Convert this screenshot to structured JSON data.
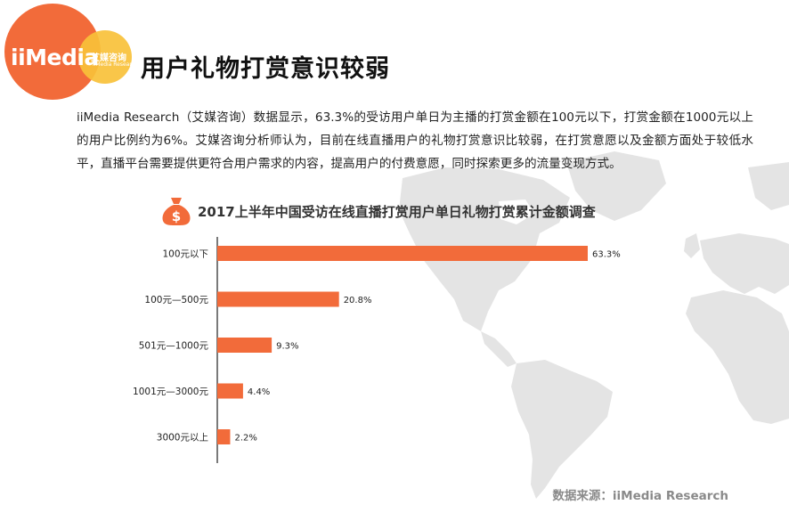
{
  "header": {
    "logo_text": "iiMedia",
    "logo_cn": "艾媒咨询",
    "logo_cn_sub": "iiMedia Research",
    "title": "用户礼物打赏意识较弱"
  },
  "description": "iiMedia Research（艾媒咨询）数据显示，63.3%的受访用户单日为主播的打赏金额在100元以下，打赏金额在1000元以上的用户比例约为6%。艾媒咨询分析师认为，目前在线直播用户的礼物打赏意识比较弱，在打赏意愿以及金额方面处于较低水平，直播平台需要提供更符合用户需求的内容，提高用户的付费意愿，同时探索更多的流量变现方式。",
  "source": "数据来源：iiMedia Research",
  "colors": {
    "bar": "#f26b3a",
    "logo_orange": "#f26b3a",
    "logo_yellow": "#f9c13a",
    "map": "#e3e3e3"
  },
  "chart_data": {
    "type": "bar",
    "orientation": "horizontal",
    "title": "2017上半年中国受访在线直播打赏用户单日礼物打赏累计金额调查",
    "categories": [
      "100元以下",
      "100元—500元",
      "501元—1000元",
      "1001元—3000元",
      "3000元以上"
    ],
    "values": [
      63.3,
      20.8,
      9.3,
      4.4,
      2.2
    ],
    "value_labels": [
      "63.3%",
      "20.8%",
      "9.3%",
      "4.4%",
      "2.2%"
    ],
    "unit": "%",
    "xlim": [
      0,
      63.3
    ],
    "grid": false,
    "legend": "none"
  }
}
